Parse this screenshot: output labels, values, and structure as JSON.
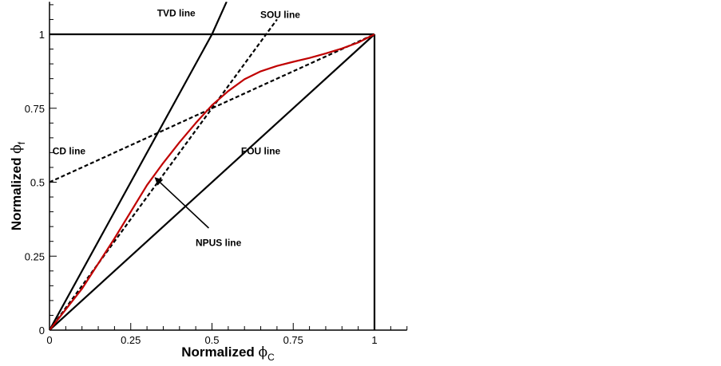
{
  "chart_data": {
    "type": "line",
    "title": "",
    "xlabel": {
      "text": "Normalized ",
      "symbol": "ϕ",
      "sub": "C"
    },
    "ylabel": {
      "text": "Normalized ",
      "symbol": "ϕ",
      "sub": "f"
    },
    "xlim": [
      0,
      1.1
    ],
    "ylim": [
      0,
      1.11
    ],
    "x_ticks": [
      0,
      0.25,
      0.5,
      0.75,
      1
    ],
    "x_tick_labels": [
      "0",
      "0.25",
      "0.5",
      "0.75",
      "1"
    ],
    "y_ticks": [
      0,
      0.25,
      0.5,
      0.75,
      1
    ],
    "y_tick_labels": [
      "0",
      "0.25",
      "0.5",
      "0.75",
      "1"
    ],
    "grid": false,
    "series": [
      {
        "name": "TVD line",
        "style": "solid",
        "color": "#000000",
        "x": [
          0,
          0.5
        ],
        "y": [
          0,
          1
        ]
      },
      {
        "name": "TVD line (upper)",
        "style": "solid",
        "color": "#000000",
        "x": [
          0.5,
          0.545
        ],
        "y": [
          1,
          1.11
        ]
      },
      {
        "name": "SOU line",
        "style": "dashed",
        "color": "#000000",
        "x": [
          0,
          0.7
        ],
        "y": [
          0,
          1.05
        ]
      },
      {
        "name": "CD line",
        "style": "dashed",
        "color": "#000000",
        "x": [
          0,
          1
        ],
        "y": [
          0.5,
          1
        ]
      },
      {
        "name": "FOU line",
        "style": "solid",
        "color": "#000000",
        "x": [
          0,
          1
        ],
        "y": [
          0,
          1
        ]
      },
      {
        "name": "Boundary horizontal",
        "style": "solid",
        "color": "#000000",
        "x": [
          0,
          1
        ],
        "y": [
          1,
          1
        ]
      },
      {
        "name": "Boundary vertical",
        "style": "solid",
        "color": "#000000",
        "x": [
          1,
          1
        ],
        "y": [
          0,
          1
        ]
      },
      {
        "name": "NPUS line",
        "style": "solid",
        "color": "#c00000",
        "x": [
          0,
          0.1,
          0.2,
          0.3,
          0.35,
          0.4,
          0.45,
          0.5,
          0.55,
          0.6,
          0.65,
          0.7,
          0.75,
          0.8,
          0.85,
          0.9,
          0.95,
          1.0
        ],
        "y": [
          0,
          0.14,
          0.31,
          0.49,
          0.565,
          0.635,
          0.7,
          0.76,
          0.808,
          0.848,
          0.875,
          0.893,
          0.907,
          0.92,
          0.935,
          0.952,
          0.972,
          1.0
        ]
      }
    ],
    "annotations": [
      {
        "text": "TVD line",
        "x": 0.39,
        "y": 1.06
      },
      {
        "text": "SOU line",
        "x": 0.71,
        "y": 1.055
      },
      {
        "text": "CD line",
        "x": 0.06,
        "y": 0.595
      },
      {
        "text": "FOU line",
        "x": 0.65,
        "y": 0.595
      },
      {
        "text": "NPUS line",
        "x": 0.52,
        "y": 0.285
      }
    ],
    "arrow": {
      "from": [
        0.49,
        0.345
      ],
      "to": [
        0.325,
        0.515
      ]
    }
  }
}
